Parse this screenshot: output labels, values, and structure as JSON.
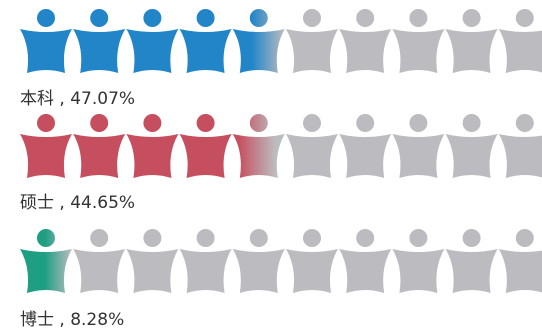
{
  "chart_data": {
    "type": "pictorial-bar",
    "icons_per_row": 10,
    "max_value": 100,
    "empty_color": "#bcbcc0",
    "series": [
      {
        "name": "本科",
        "value": 47.07,
        "label": "本科 , 47.07%",
        "color": "#2185c8"
      },
      {
        "name": "硕士",
        "value": 44.65,
        "label": "硕士 , 44.65%",
        "color": "#c64f5f"
      },
      {
        "name": "博士",
        "value": 8.28,
        "label": "博士 , 8.28%",
        "color": "#1e9e82"
      }
    ]
  }
}
